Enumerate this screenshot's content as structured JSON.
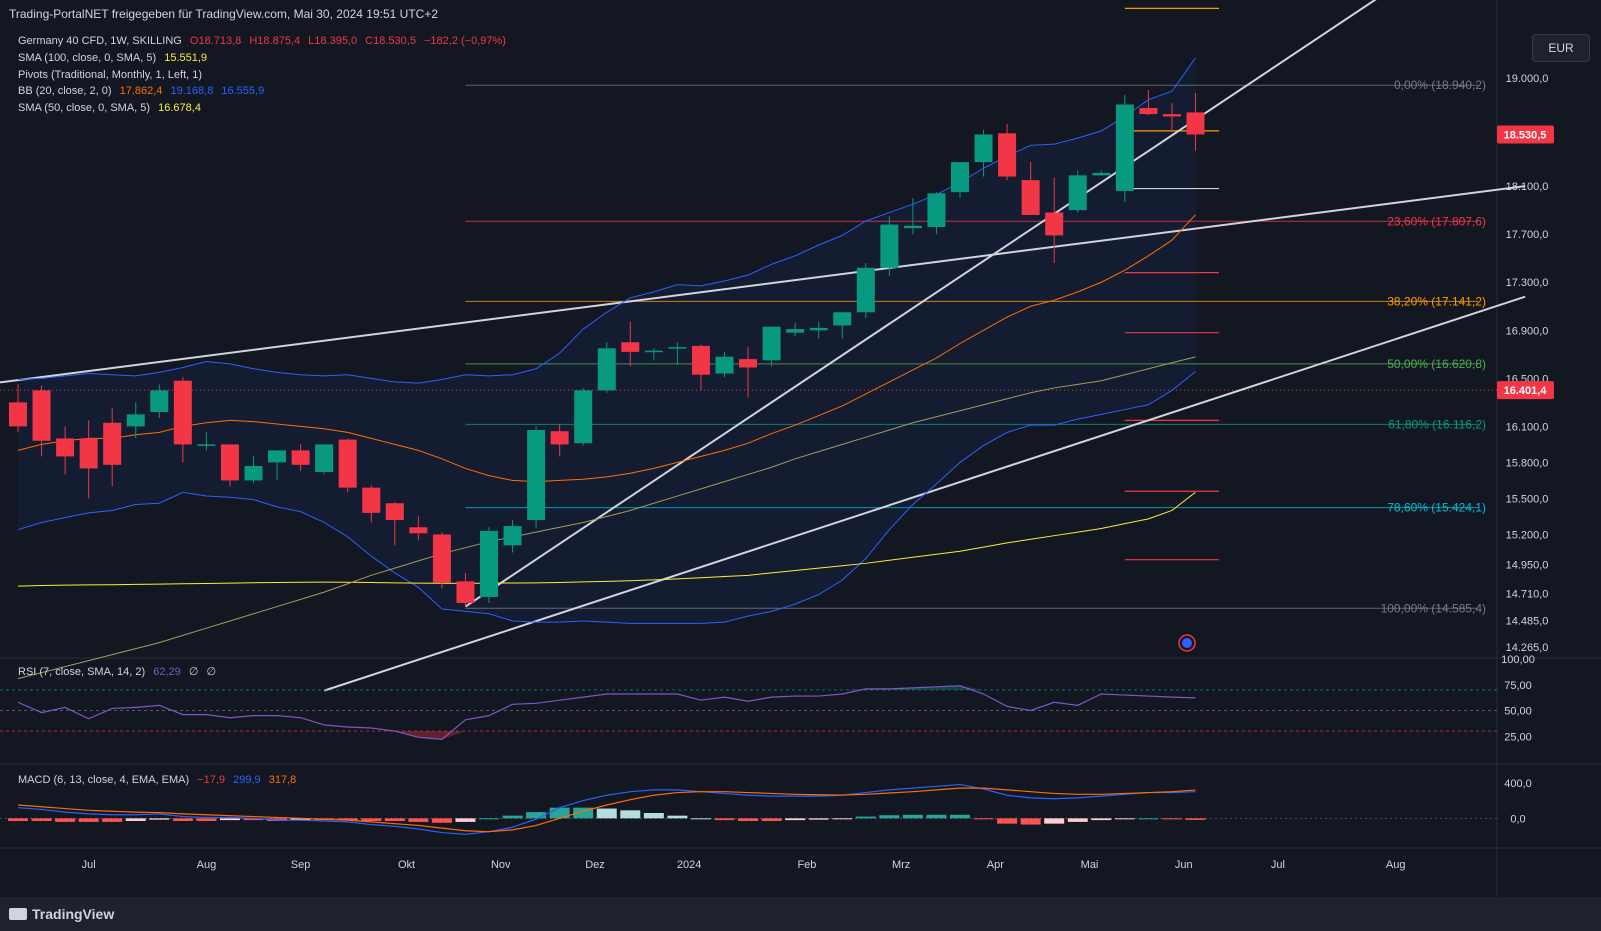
{
  "header": {
    "title": "Trading-PortalNET freigegeben für TradingView.com, Mai 30, 2024 19:51 UTC+2"
  },
  "currency": "EUR",
  "brand": "TradingView",
  "legend": {
    "symbol": {
      "name": "Germany 40 CFD, 1W, SKILLING",
      "o": "O18.713,8",
      "h": "H18.875,4",
      "l": "L18.395,0",
      "c": "C18.530,5",
      "chg": "−182,2 (−0,97%)"
    },
    "sma100": {
      "label": "SMA (100, close, 0, SMA, 5)",
      "value": "15.551,9"
    },
    "pivots": {
      "label": "Pivots (Traditional, Monthly, 1, Left, 1)"
    },
    "bb": {
      "label": "BB (20, close, 2, 0)",
      "basis": "17.862,4",
      "upper": "19.168,8",
      "lower": "16.555,9"
    },
    "sma50": {
      "label": "SMA (50, close, 0, SMA, 5)",
      "value": "16.678,4"
    },
    "rsi": {
      "label": "RSI (7, close, SMA, 14, 2)",
      "value": "62,29",
      "extra1": "∅",
      "extra2": "∅"
    },
    "macd": {
      "label": "MACD (6, 13, close, 4, EMA, EMA)",
      "hist": "−17,9",
      "macd": "299,9",
      "signal": "317,8"
    }
  },
  "colors": {
    "background": "#131722",
    "up": "#089981",
    "down": "#f23645",
    "bb": "#2962ff",
    "bb_basis": "#ff6d00",
    "sma100": "#ffeb3b",
    "sma50": "#a39c5b",
    "rsi": "#7e57c2",
    "macd": "#2962ff",
    "signal": "#ff6d00",
    "trend": "#d1d4dc"
  },
  "price_axis": [
    "19.000,0",
    "18.100,0",
    "17.700,0",
    "17.300,0",
    "16.900,0",
    "16.500,0",
    "16.100,0",
    "15.800,0",
    "15.500,0",
    "15.200,0",
    "14.950,0",
    "14.710,0",
    "14.485,0",
    "14.265,0"
  ],
  "price_labels": {
    "last": "18.530,5",
    "marked": "16.401,4"
  },
  "time_axis": [
    "Jul",
    "Aug",
    "Sep",
    "Okt",
    "Nov",
    "Dez",
    "2024",
    "Feb",
    "Mrz",
    "Apr",
    "Mai",
    "Jun",
    "Jul",
    "Aug"
  ],
  "rsi_axis": [
    "100,00",
    "75,00",
    "50,00",
    "25,00"
  ],
  "macd_axis": [
    "400,0",
    "0,0"
  ],
  "fib_levels": [
    {
      "label": "0,00% (18.940,2)",
      "value": 18940.2,
      "color": "#787b86"
    },
    {
      "label": "23,60% (17.807,6)",
      "value": 17807.6,
      "color": "#f23645"
    },
    {
      "label": "38,20% (17.141,2)",
      "value": 17141.2,
      "color": "#ff9800"
    },
    {
      "label": "50,00% (16.620,8)",
      "value": 16620.8,
      "color": "#4caf50"
    },
    {
      "label": "61,80% (16.116,2)",
      "value": 16116.2,
      "color": "#089981"
    },
    {
      "label": "78,60% (15.424,1)",
      "value": 15424.1,
      "color": "#00bcd4"
    },
    {
      "label": "100,00% (14.585,4)",
      "value": 14585.4,
      "color": "#787b86"
    }
  ],
  "chart_data": {
    "type": "candlestick",
    "title": "Germany 40 CFD, 1W, SKILLING",
    "ylim": [
      14180,
      19400
    ],
    "candles": [
      [
        16300,
        16450,
        16050,
        16100
      ],
      [
        16400,
        16440,
        15850,
        15980
      ],
      [
        16000,
        16100,
        15700,
        15850
      ],
      [
        16000,
        16150,
        15500,
        15750
      ],
      [
        16130,
        16250,
        15600,
        15780
      ],
      [
        16100,
        16300,
        16000,
        16200
      ],
      [
        16220,
        16450,
        16170,
        16400
      ],
      [
        16480,
        16510,
        15800,
        15950
      ],
      [
        15950,
        16050,
        15900,
        15950
      ],
      [
        15950,
        15950,
        15600,
        15650
      ],
      [
        15650,
        15850,
        15630,
        15770
      ],
      [
        15800,
        15900,
        15650,
        15900
      ],
      [
        15900,
        15950,
        15730,
        15780
      ],
      [
        15720,
        15950,
        15700,
        15950
      ],
      [
        15990,
        16000,
        15550,
        15590
      ],
      [
        15590,
        15610,
        15300,
        15380
      ],
      [
        15460,
        15470,
        15110,
        15320
      ],
      [
        15260,
        15350,
        15150,
        15210
      ],
      [
        15200,
        15220,
        14750,
        14800
      ],
      [
        14810,
        14880,
        14600,
        14630
      ],
      [
        14680,
        15260,
        14630,
        15230
      ],
      [
        15110,
        15320,
        15050,
        15270
      ],
      [
        15320,
        16100,
        15250,
        16070
      ],
      [
        16060,
        16120,
        15850,
        15950
      ],
      [
        15960,
        16420,
        15940,
        16400
      ],
      [
        16400,
        16800,
        16380,
        16750
      ],
      [
        16800,
        16970,
        16600,
        16720
      ],
      [
        16730,
        16750,
        16650,
        16730
      ],
      [
        16760,
        16800,
        16620,
        16760
      ],
      [
        16770,
        16780,
        16400,
        16530
      ],
      [
        16540,
        16720,
        16510,
        16680
      ],
      [
        16660,
        16760,
        16340,
        16590
      ],
      [
        16650,
        16920,
        16600,
        16930
      ],
      [
        16880,
        16960,
        16850,
        16910
      ],
      [
        16900,
        16970,
        16830,
        16920
      ],
      [
        16940,
        17000,
        16830,
        17050
      ],
      [
        17050,
        17460,
        17000,
        17420
      ],
      [
        17420,
        17850,
        17350,
        17780
      ],
      [
        17750,
        18000,
        17700,
        17770
      ],
      [
        17760,
        18050,
        17700,
        18040
      ],
      [
        18050,
        18250,
        18000,
        18300
      ],
      [
        18300,
        18570,
        18180,
        18530
      ],
      [
        18540,
        18620,
        18150,
        18180
      ],
      [
        18150,
        18300,
        17860,
        17860
      ],
      [
        17880,
        18170,
        17460,
        17690
      ],
      [
        17900,
        18230,
        17880,
        18190
      ],
      [
        18190,
        18230,
        18190,
        18210
      ],
      [
        18060,
        18860,
        17970,
        18780
      ],
      [
        18750,
        18900,
        18690,
        18700
      ],
      [
        18700,
        18790,
        18550,
        18680
      ],
      [
        18713.8,
        18875.4,
        18395.0,
        18530.5
      ]
    ],
    "sma100": [
      14770,
      14775,
      14778,
      14780,
      14782,
      14785,
      14787,
      14790,
      14792,
      14795,
      14798,
      14800,
      14802,
      14803,
      14802,
      14800,
      14797,
      14795,
      14794,
      14793,
      14795,
      14796,
      14797,
      14800,
      14805,
      14810,
      14815,
      14822,
      14830,
      14840,
      14850,
      14860,
      14880,
      14900,
      14920,
      14940,
      14960,
      14985,
      15010,
      15035,
      15060,
      15095,
      15130,
      15160,
      15190,
      15220,
      15250,
      15290,
      15330,
      15400,
      15551.9
    ],
    "sma50": [
      14000,
      14050,
      14100,
      14150,
      14200,
      14250,
      14300,
      14360,
      14420,
      14480,
      14540,
      14600,
      14660,
      14720,
      14790,
      14860,
      14920,
      14980,
      15040,
      15090,
      15140,
      15180,
      15220,
      15260,
      15300,
      15350,
      15400,
      15460,
      15520,
      15580,
      15640,
      15700,
      15760,
      15830,
      15890,
      15950,
      16010,
      16070,
      16130,
      16180,
      16230,
      16280,
      16330,
      16380,
      16420,
      16450,
      16480,
      16530,
      16580,
      16630,
      16678.4
    ],
    "bb_upper": [
      16490,
      16500,
      16520,
      16540,
      16530,
      16520,
      16550,
      16590,
      16640,
      16620,
      16580,
      16550,
      16530,
      16520,
      16530,
      16500,
      16470,
      16460,
      16490,
      16530,
      16520,
      16530,
      16580,
      16710,
      16910,
      17050,
      17170,
      17220,
      17280,
      17270,
      17310,
      17360,
      17450,
      17520,
      17610,
      17690,
      17810,
      17880,
      17950,
      18030,
      18130,
      18250,
      18350,
      18440,
      18450,
      18500,
      18560,
      18680,
      18820,
      18890,
      19168.8
    ],
    "bb_basis": [
      15900,
      15950,
      15980,
      16000,
      16000,
      16030,
      16050,
      16100,
      16130,
      16150,
      16140,
      16120,
      16100,
      16080,
      16050,
      16000,
      15950,
      15900,
      15830,
      15750,
      15690,
      15650,
      15640,
      15650,
      15660,
      15680,
      15710,
      15750,
      15800,
      15850,
      15900,
      15960,
      16040,
      16110,
      16190,
      16270,
      16370,
      16470,
      16570,
      16670,
      16790,
      16900,
      17010,
      17100,
      17150,
      17220,
      17300,
      17400,
      17520,
      17650,
      17862.4
    ],
    "bb_lower": [
      15240,
      15300,
      15340,
      15380,
      15400,
      15450,
      15460,
      15550,
      15520,
      15510,
      15490,
      15430,
      15390,
      15300,
      15180,
      15020,
      14880,
      14760,
      14580,
      14560,
      14540,
      14480,
      14470,
      14470,
      14480,
      14470,
      14460,
      14460,
      14460,
      14460,
      14470,
      14520,
      14560,
      14620,
      14700,
      14820,
      15000,
      15240,
      15450,
      15620,
      15800,
      15940,
      16050,
      16110,
      16110,
      16160,
      16200,
      16240,
      16280,
      16400,
      16555.9
    ],
    "pivot_segments": [
      {
        "value": 19580,
        "color": "#ff9800"
      },
      {
        "value": 18560,
        "color": "#ff9800"
      },
      {
        "value": 18080,
        "color": "#d1d4dc"
      },
      {
        "value": 17380,
        "color": "#f23645"
      },
      {
        "value": 16880,
        "color": "#f23645"
      },
      {
        "value": 16150,
        "color": "#f23645"
      },
      {
        "value": 15560,
        "color": "#f23645"
      },
      {
        "value": 14990,
        "color": "#f23645"
      }
    ],
    "trendlines": [
      {
        "x1": -1,
        "y1": 16460,
        "x2": 64,
        "y2": 18100
      },
      {
        "x1": 13,
        "y1": 13900,
        "x2": 64,
        "y2": 17180
      },
      {
        "x1": 19,
        "y1": 14600,
        "x2": 58,
        "y2": 19700
      }
    ],
    "rsi": [
      58,
      48,
      53,
      42,
      52,
      53,
      55,
      46,
      46,
      43,
      45,
      45,
      43,
      36,
      34,
      33,
      30,
      24,
      22,
      41,
      45,
      56,
      57,
      60,
      63,
      66,
      66,
      66,
      66,
      60,
      63,
      59,
      63,
      64,
      64,
      66,
      71,
      71,
      72,
      73,
      74,
      66,
      54,
      50,
      58,
      55,
      66,
      65,
      64,
      63,
      62.29
    ],
    "rsi_ylim": [
      0,
      100
    ],
    "rsi_bands": [
      70,
      50,
      30
    ],
    "macd": [
      120,
      100,
      70,
      50,
      40,
      40,
      50,
      20,
      10,
      10,
      0,
      -20,
      -20,
      -30,
      -40,
      -70,
      -90,
      -120,
      -160,
      -180,
      -150,
      -100,
      -10,
      120,
      200,
      260,
      300,
      320,
      320,
      300,
      280,
      260,
      250,
      250,
      250,
      260,
      290,
      320,
      340,
      360,
      380,
      330,
      260,
      230,
      220,
      230,
      250,
      270,
      290,
      290,
      299.9
    ],
    "signal": [
      150,
      130,
      110,
      90,
      80,
      70,
      65,
      50,
      40,
      30,
      20,
      10,
      0,
      -10,
      -20,
      -40,
      -60,
      -80,
      -110,
      -140,
      -150,
      -130,
      -80,
      0,
      80,
      150,
      210,
      260,
      290,
      300,
      300,
      290,
      280,
      270,
      265,
      262,
      270,
      285,
      300,
      320,
      340,
      340,
      320,
      300,
      280,
      270,
      270,
      280,
      290,
      300,
      317.8
    ],
    "macd_ylim": [
      -300,
      600
    ]
  }
}
